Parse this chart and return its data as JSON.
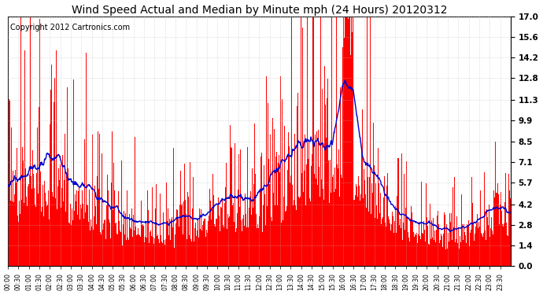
{
  "n_points": 1440,
  "title": "Wind Speed Actual and Median by Minute mph (24 Hours) 20120312",
  "yticks": [
    0.0,
    1.4,
    2.8,
    4.2,
    5.7,
    7.1,
    8.5,
    9.9,
    11.3,
    12.8,
    14.2,
    15.6,
    17.0
  ],
  "ylim": [
    0.0,
    17.0
  ],
  "bar_color": "#FF0000",
  "line_color": "#0000CD",
  "background_color": "#FFFFFF",
  "grid_color": "#CCCCCC",
  "copyright_text": "Copyright 2012 Cartronics.com",
  "tick_interval": 30,
  "title_fontsize": 10,
  "copyright_fontsize": 7
}
